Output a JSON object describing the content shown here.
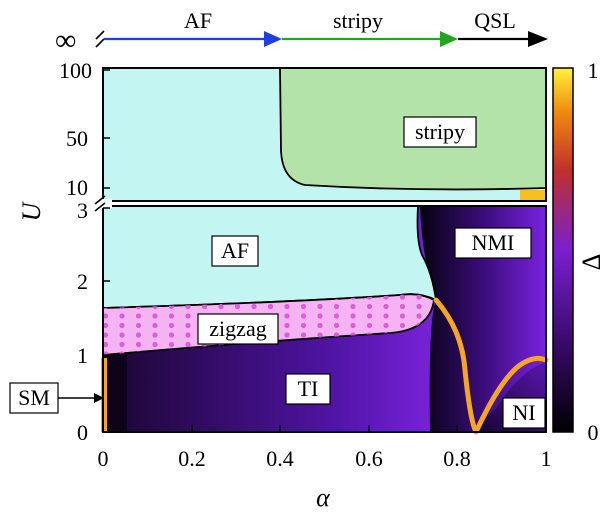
{
  "top_arrow": {
    "infinity_label": "∞",
    "segments": [
      {
        "label": "AF",
        "color": "#1f3fe0"
      },
      {
        "label": "stripy",
        "color": "#22a61f"
      },
      {
        "label": "QSL",
        "color": "#000000"
      }
    ]
  },
  "axes": {
    "xlabel": "α",
    "ylabel": "U",
    "colorbar_label": "Δ",
    "x_ticks": [
      "0",
      "0.2",
      "0.4",
      "0.6",
      "0.8",
      "1"
    ],
    "y_ticks_lower": [
      "0",
      "1",
      "2",
      "3"
    ],
    "y_ticks_upper": [
      "10",
      "50",
      "100"
    ],
    "colorbar_ticks": [
      "0",
      "1"
    ]
  },
  "regions": {
    "af": "AF",
    "stripy": "stripy",
    "zigzag": "zigzag",
    "ti": "TI",
    "nmi": "NMI",
    "ni": "NI",
    "sm": "SM"
  },
  "colors": {
    "af_region": "#c3f5f3",
    "stripy_region": "#b3e3a8",
    "zigzag_region": "#f5b3f3",
    "zigzag_dots": "#d95fd6",
    "phase_line": "#f5a623"
  }
}
